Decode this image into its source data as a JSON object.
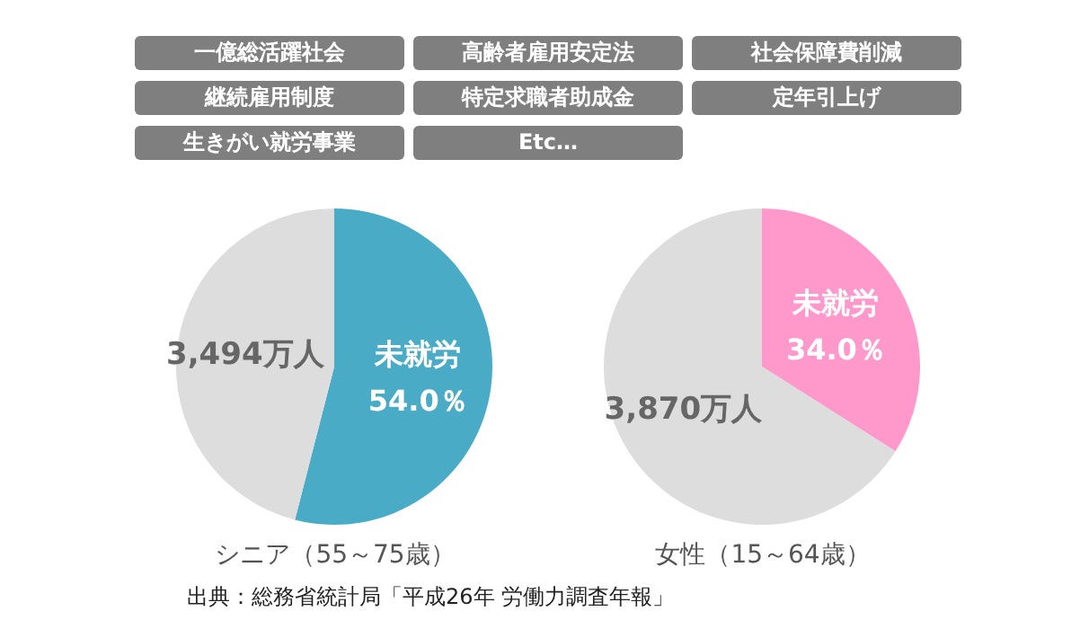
{
  "chart_data": [
    {
      "type": "other",
      "annotations": [
        "一億総活躍社会",
        "高齢者雇用安定法",
        "社会保障費削減",
        "継続雇用制度",
        "特定求職者助成金",
        "定年引上げ",
        "生きがい就労事業",
        "Etc…",
        "出典：総務省統計局「平成26年 労働力調査年報」"
      ]
    },
    {
      "type": "pie",
      "title": "シニア（55～75歳）",
      "categories": [
        "未就労",
        null
      ],
      "values": [
        54.0,
        46.0
      ],
      "colors": [
        "#4aabc6",
        "#dddddd"
      ],
      "value_labels": [
        "54.0％",
        null
      ],
      "annotations": [
        "3,494万人"
      ]
    },
    {
      "type": "pie",
      "title": "女性（15～64歳）",
      "categories": [
        "未就労",
        null
      ],
      "values": [
        34.0,
        66.0
      ],
      "colors": [
        "#ff99cc",
        "#dddddd"
      ],
      "value_labels": [
        "34.0％",
        null
      ],
      "annotations": [
        "3,870万人"
      ]
    }
  ]
}
